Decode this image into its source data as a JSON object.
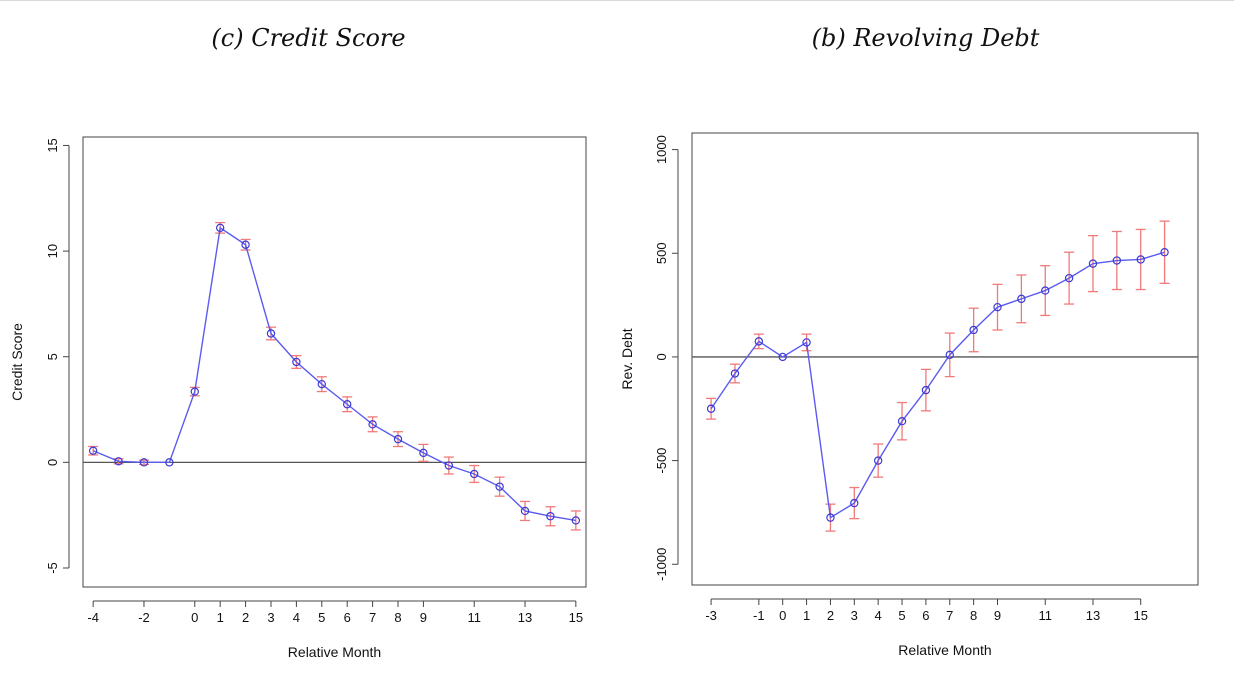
{
  "chart_data": [
    {
      "type": "line",
      "title": "(c) Credit Score",
      "xlabel": "Relative Month",
      "ylabel": "Credit Score",
      "xlim": [
        -4.4,
        15.4
      ],
      "ylim": [
        -5.9,
        15.4
      ],
      "xticks": [
        -4,
        -2,
        0,
        1,
        2,
        3,
        4,
        5,
        6,
        7,
        8,
        9,
        11,
        13,
        15
      ],
      "yticks": [
        -5,
        0,
        5,
        10,
        15
      ],
      "hline": 0,
      "grid": false,
      "colors": {
        "line": "#5b5bf0",
        "points": "#3a3ad6",
        "errorbars": "#f07a7a",
        "axes": "#444444"
      },
      "series": [
        {
          "x": [
            -4,
            -3,
            -2,
            -1,
            0,
            1,
            2,
            3,
            4,
            5,
            6,
            7,
            8,
            9,
            10,
            11,
            12,
            13,
            14,
            15
          ],
          "y": [
            0.55,
            0.05,
            0.0,
            0.0,
            3.35,
            11.1,
            10.3,
            6.1,
            4.75,
            3.7,
            2.75,
            1.8,
            1.1,
            0.45,
            -0.15,
            -0.55,
            -1.15,
            -2.3,
            -2.55,
            -2.75
          ],
          "err": [
            0.2,
            0.12,
            0.1,
            0.0,
            0.2,
            0.25,
            0.25,
            0.3,
            0.3,
            0.35,
            0.35,
            0.35,
            0.35,
            0.4,
            0.4,
            0.4,
            0.45,
            0.45,
            0.45,
            0.45
          ]
        }
      ]
    },
    {
      "type": "line",
      "title": "(b) Revolving Debt",
      "xlabel": "Relative Month",
      "ylabel": "Rev. Debt",
      "xlim": [
        -3.8,
        17.4
      ],
      "ylim": [
        -1100,
        1080
      ],
      "xticks": [
        -3,
        -1,
        0,
        1,
        2,
        3,
        4,
        5,
        6,
        7,
        8,
        9,
        11,
        13,
        15
      ],
      "yticks": [
        -1000,
        -500,
        0,
        500,
        1000
      ],
      "hline": 0,
      "grid": false,
      "colors": {
        "line": "#5b5bf0",
        "points": "#3a3ad6",
        "errorbars": "#f07a7a",
        "axes": "#444444"
      },
      "series": [
        {
          "x": [
            -3,
            -2,
            -1,
            0,
            1,
            2,
            3,
            4,
            5,
            6,
            7,
            8,
            9,
            10,
            11,
            12,
            13,
            14,
            15,
            16
          ],
          "y": [
            -250,
            -80,
            75,
            0,
            70,
            -775,
            -705,
            -500,
            -310,
            -160,
            10,
            130,
            240,
            280,
            320,
            380,
            450,
            465,
            470,
            505
          ],
          "err": [
            50,
            45,
            35,
            0,
            40,
            65,
            75,
            80,
            90,
            100,
            105,
            105,
            110,
            115,
            120,
            125,
            135,
            140,
            145,
            150
          ]
        }
      ]
    }
  ]
}
